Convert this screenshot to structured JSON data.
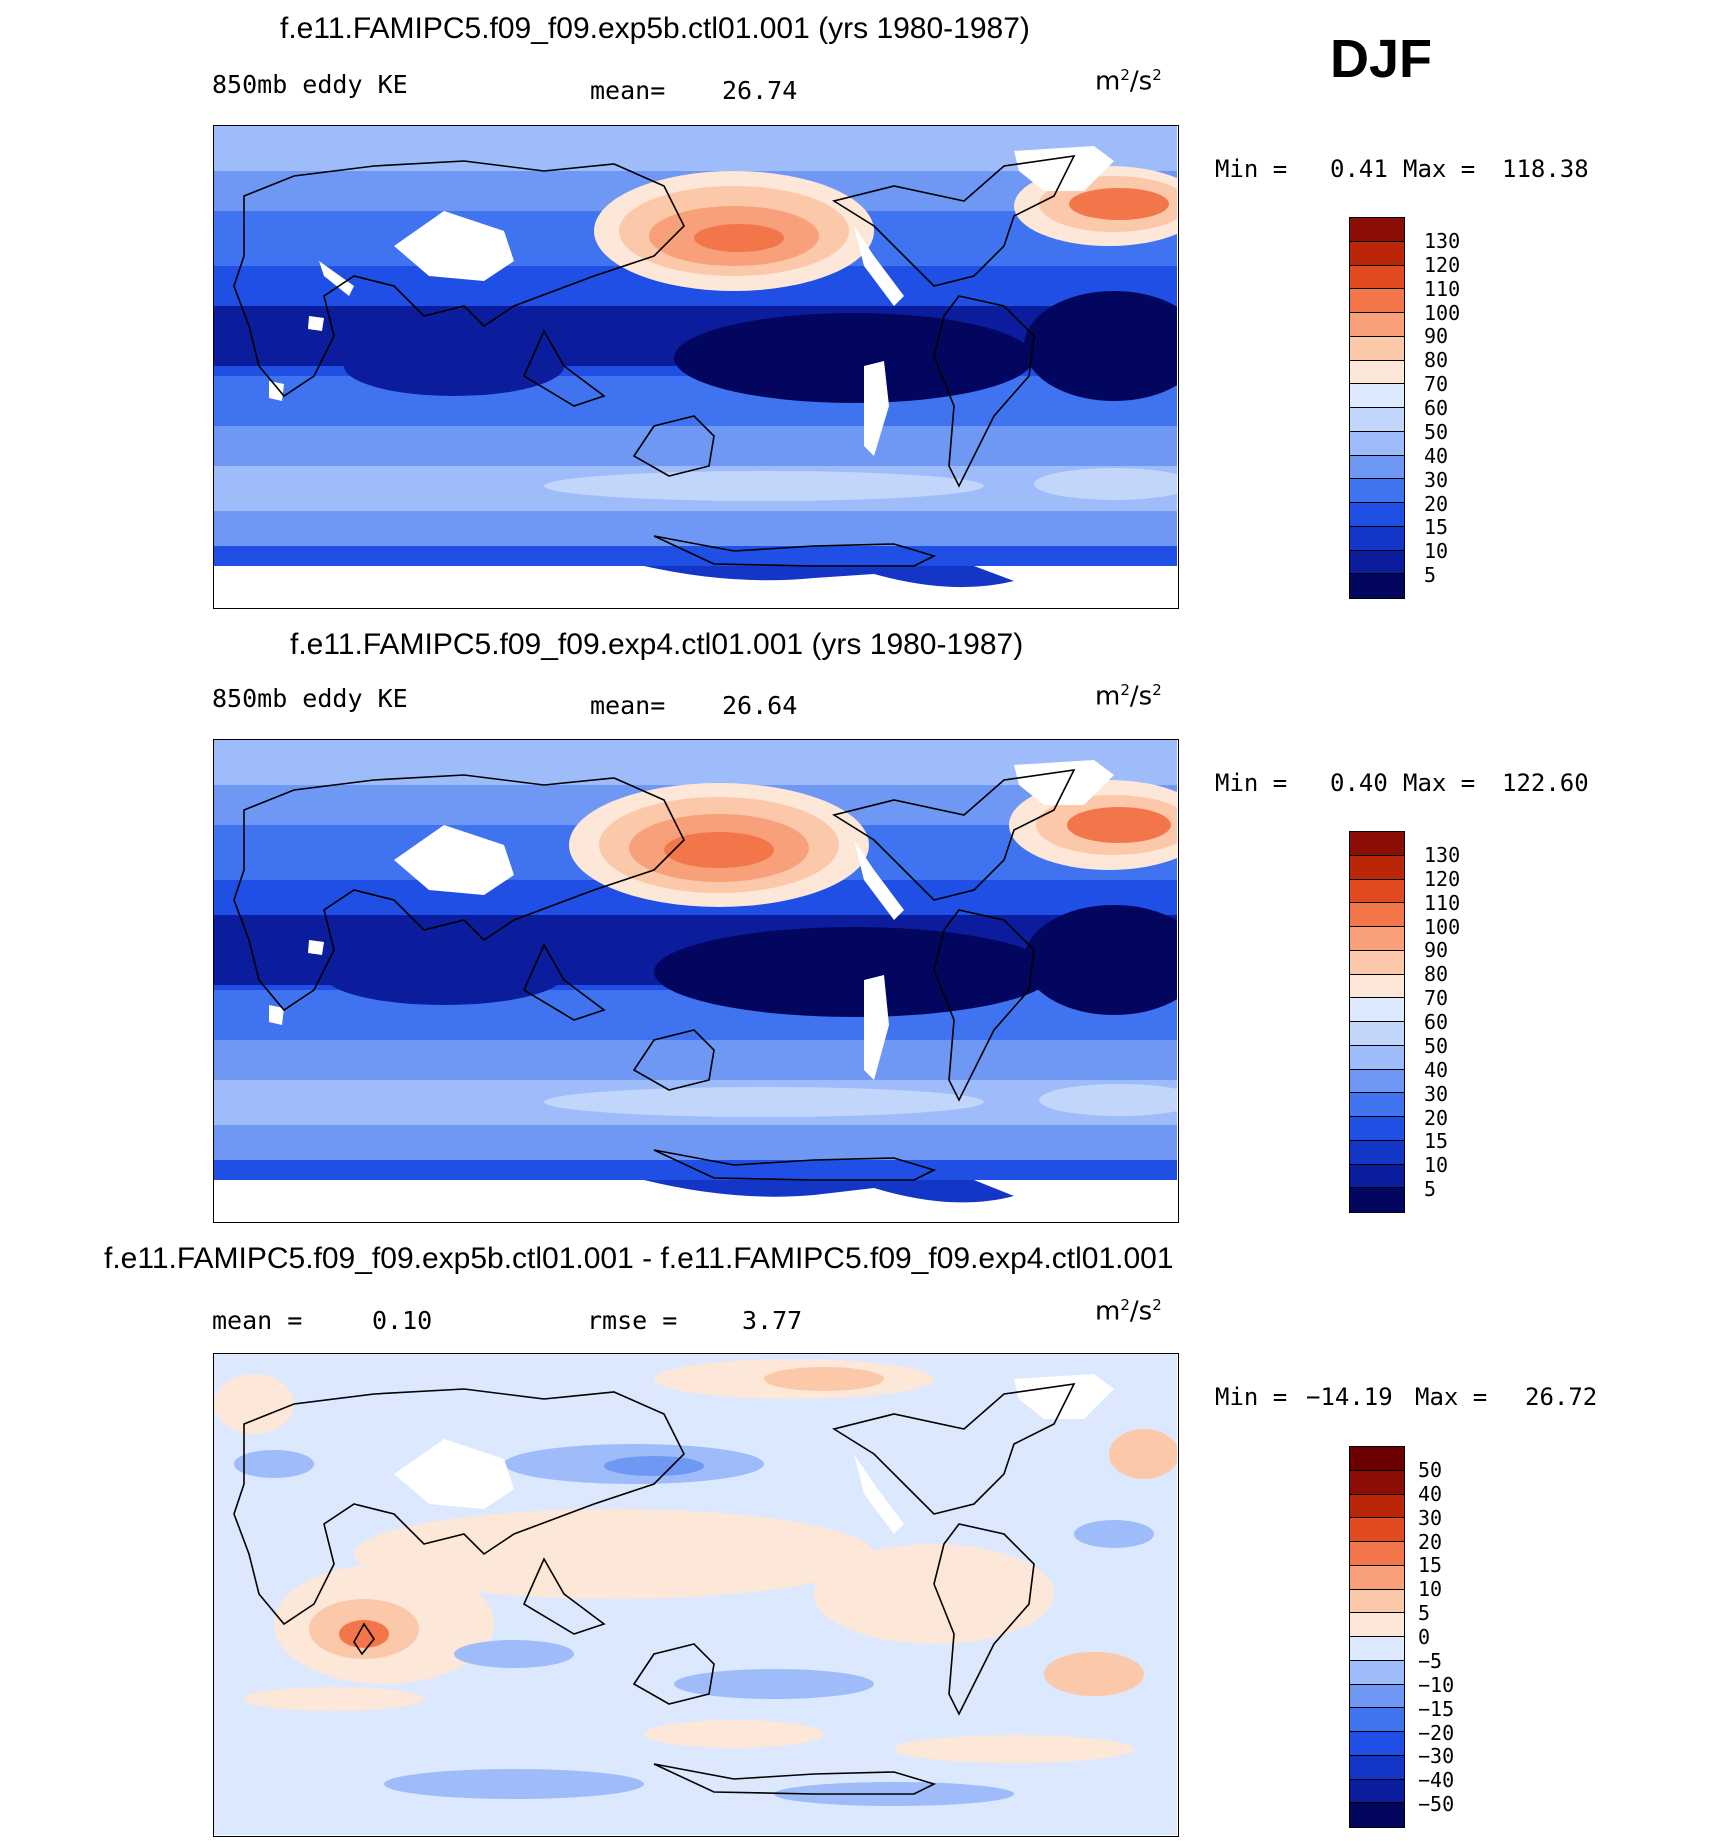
{
  "season": "DJF",
  "chart_data": [
    {
      "type": "heatmap",
      "title": "f.e11.FAMIPC5.f09_f09.exp5b.ctl01.001 (yrs 1980-1987)",
      "left_label": "850mb eddy KE",
      "mean_label": "mean=",
      "mean": "26.74",
      "units": "m²/s²",
      "min_label": "Min =",
      "min": "0.41",
      "max_label": "Max =",
      "max": "118.38",
      "levels": [
        "5",
        "10",
        "15",
        "20",
        "30",
        "40",
        "50",
        "60",
        "70",
        "80",
        "90",
        "100",
        "110",
        "120",
        "130"
      ],
      "colors": [
        "#03065e",
        "#0b1d9c",
        "#1436c7",
        "#1f4fe4",
        "#3f73ef",
        "#6f98f5",
        "#9ebcf9",
        "#c2d6fc",
        "#dde9fd",
        "#fde7d8",
        "#fbc8aa",
        "#f8a07a",
        "#f2764a",
        "#e24a21",
        "#bb2508",
        "#8a0e05"
      ]
    },
    {
      "type": "heatmap",
      "title": "f.e11.FAMIPC5.f09_f09.exp4.ctl01.001 (yrs 1980-1987)",
      "left_label": "850mb eddy KE",
      "mean_label": "mean=",
      "mean": "26.64",
      "units": "m²/s²",
      "min_label": "Min =",
      "min": "0.40",
      "max_label": "Max =",
      "max": "122.60",
      "levels": [
        "5",
        "10",
        "15",
        "20",
        "30",
        "40",
        "50",
        "60",
        "70",
        "80",
        "90",
        "100",
        "110",
        "120",
        "130"
      ],
      "colors": [
        "#03065e",
        "#0b1d9c",
        "#1436c7",
        "#1f4fe4",
        "#3f73ef",
        "#6f98f5",
        "#9ebcf9",
        "#c2d6fc",
        "#dde9fd",
        "#fde7d8",
        "#fbc8aa",
        "#f8a07a",
        "#f2764a",
        "#e24a21",
        "#bb2508",
        "#8a0e05"
      ]
    },
    {
      "type": "heatmap",
      "title": "f.e11.FAMIPC5.f09_f09.exp5b.ctl01.001 - f.e11.FAMIPC5.f09_f09.exp4.ctl01.001",
      "mean_label": "mean =",
      "mean": "0.10",
      "rmse_label": "rmse =",
      "rmse": "3.77",
      "units": "m²/s²",
      "min_label": "Min =",
      "min": "−14.19",
      "max_label": "Max =",
      "max": "26.72",
      "levels": [
        "−50",
        "−40",
        "−30",
        "−20",
        "−15",
        "−10",
        "−5",
        "0",
        "5",
        "10",
        "15",
        "20",
        "30",
        "40",
        "50"
      ],
      "colors": [
        "#03065e",
        "#0b1d9c",
        "#1436c7",
        "#1f4fe4",
        "#3f73ef",
        "#6f98f5",
        "#9ebcf9",
        "#dbe8fd",
        "#fde7d8",
        "#fbc8aa",
        "#f8a07a",
        "#f2764a",
        "#e24a21",
        "#bb2508",
        "#8a0e05",
        "#6a0000"
      ]
    }
  ]
}
